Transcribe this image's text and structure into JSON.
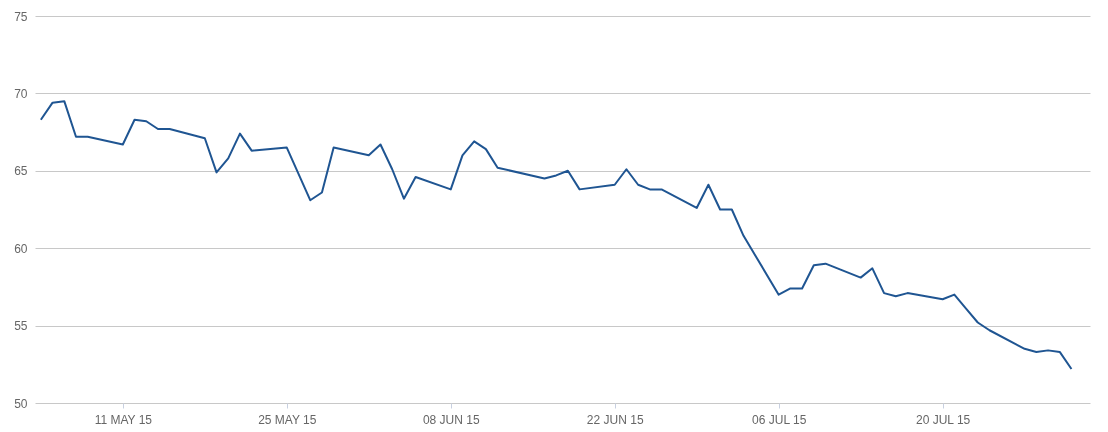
{
  "chart_data": {
    "type": "line",
    "x": [
      "--05-04",
      "--05-05",
      "--05-06",
      "--05-07",
      "--05-08",
      "--05-11",
      "--05-12",
      "--05-13",
      "--05-14",
      "--05-15",
      "--05-18",
      "--05-19",
      "--05-20",
      "--05-21",
      "--05-22",
      "--05-25",
      "--05-27",
      "--05-28",
      "--05-29",
      "--06-01",
      "--06-02",
      "--06-03",
      "--06-04",
      "--06-05",
      "--06-08",
      "--06-09",
      "--06-10",
      "--06-11",
      "--06-12",
      "--06-16",
      "--06-17",
      "--06-18",
      "--06-19",
      "--06-22",
      "--06-23",
      "--06-24",
      "--06-25",
      "--06-26",
      "--06-29",
      "--06-30",
      "--07-01",
      "--07-02",
      "--07-03",
      "--07-06",
      "--07-07",
      "--07-08",
      "--07-09",
      "--07-10",
      "--07-13",
      "--07-14",
      "--07-15",
      "--07-16",
      "--07-17",
      "--07-20",
      "--07-21",
      "--07-22",
      "--07-23",
      "--07-24",
      "--07-27",
      "--07-28",
      "--07-29",
      "--07-30",
      "--07-31"
    ],
    "series": [
      {
        "color": "#1f5592",
        "values": [
          68.3,
          69.4,
          69.5,
          67.2,
          67.2,
          66.7,
          68.3,
          68.2,
          67.7,
          67.7,
          67.1,
          64.9,
          65.8,
          67.4,
          66.3,
          66.5,
          63.1,
          63.6,
          66.5,
          66.0,
          66.7,
          65.1,
          63.2,
          64.6,
          63.8,
          66.0,
          66.9,
          66.4,
          65.2,
          64.5,
          64.7,
          65.0,
          63.8,
          64.1,
          65.1,
          64.1,
          63.8,
          63.8,
          62.6,
          64.1,
          62.5,
          62.5,
          60.8,
          57.0,
          57.4,
          57.4,
          58.9,
          59.0,
          58.1,
          58.7,
          57.1,
          56.9,
          57.1,
          56.7,
          57.0,
          56.1,
          55.2,
          54.7,
          53.5,
          53.3,
          53.4,
          53.3,
          52.2
        ]
      }
    ],
    "xlim": [
      "--05-03T12:00",
      "--08-01T14:00"
    ],
    "xticks": [
      {
        "value": "--05-11",
        "label": "11 MAY 15"
      },
      {
        "value": "--05-25",
        "label": "25 MAY 15"
      },
      {
        "value": "--06-08",
        "label": "08 JUN 15"
      },
      {
        "value": "--06-22",
        "label": "22 JUN 15"
      },
      {
        "value": "--07-06",
        "label": "06 JUL 15"
      },
      {
        "value": "--07-20",
        "label": "20 JUL 15"
      }
    ],
    "ylim": [
      50,
      75
    ],
    "yticks": [
      50,
      55,
      60,
      65,
      70,
      75
    ],
    "grid": "y",
    "marker": "none",
    "line_style": "solid"
  }
}
